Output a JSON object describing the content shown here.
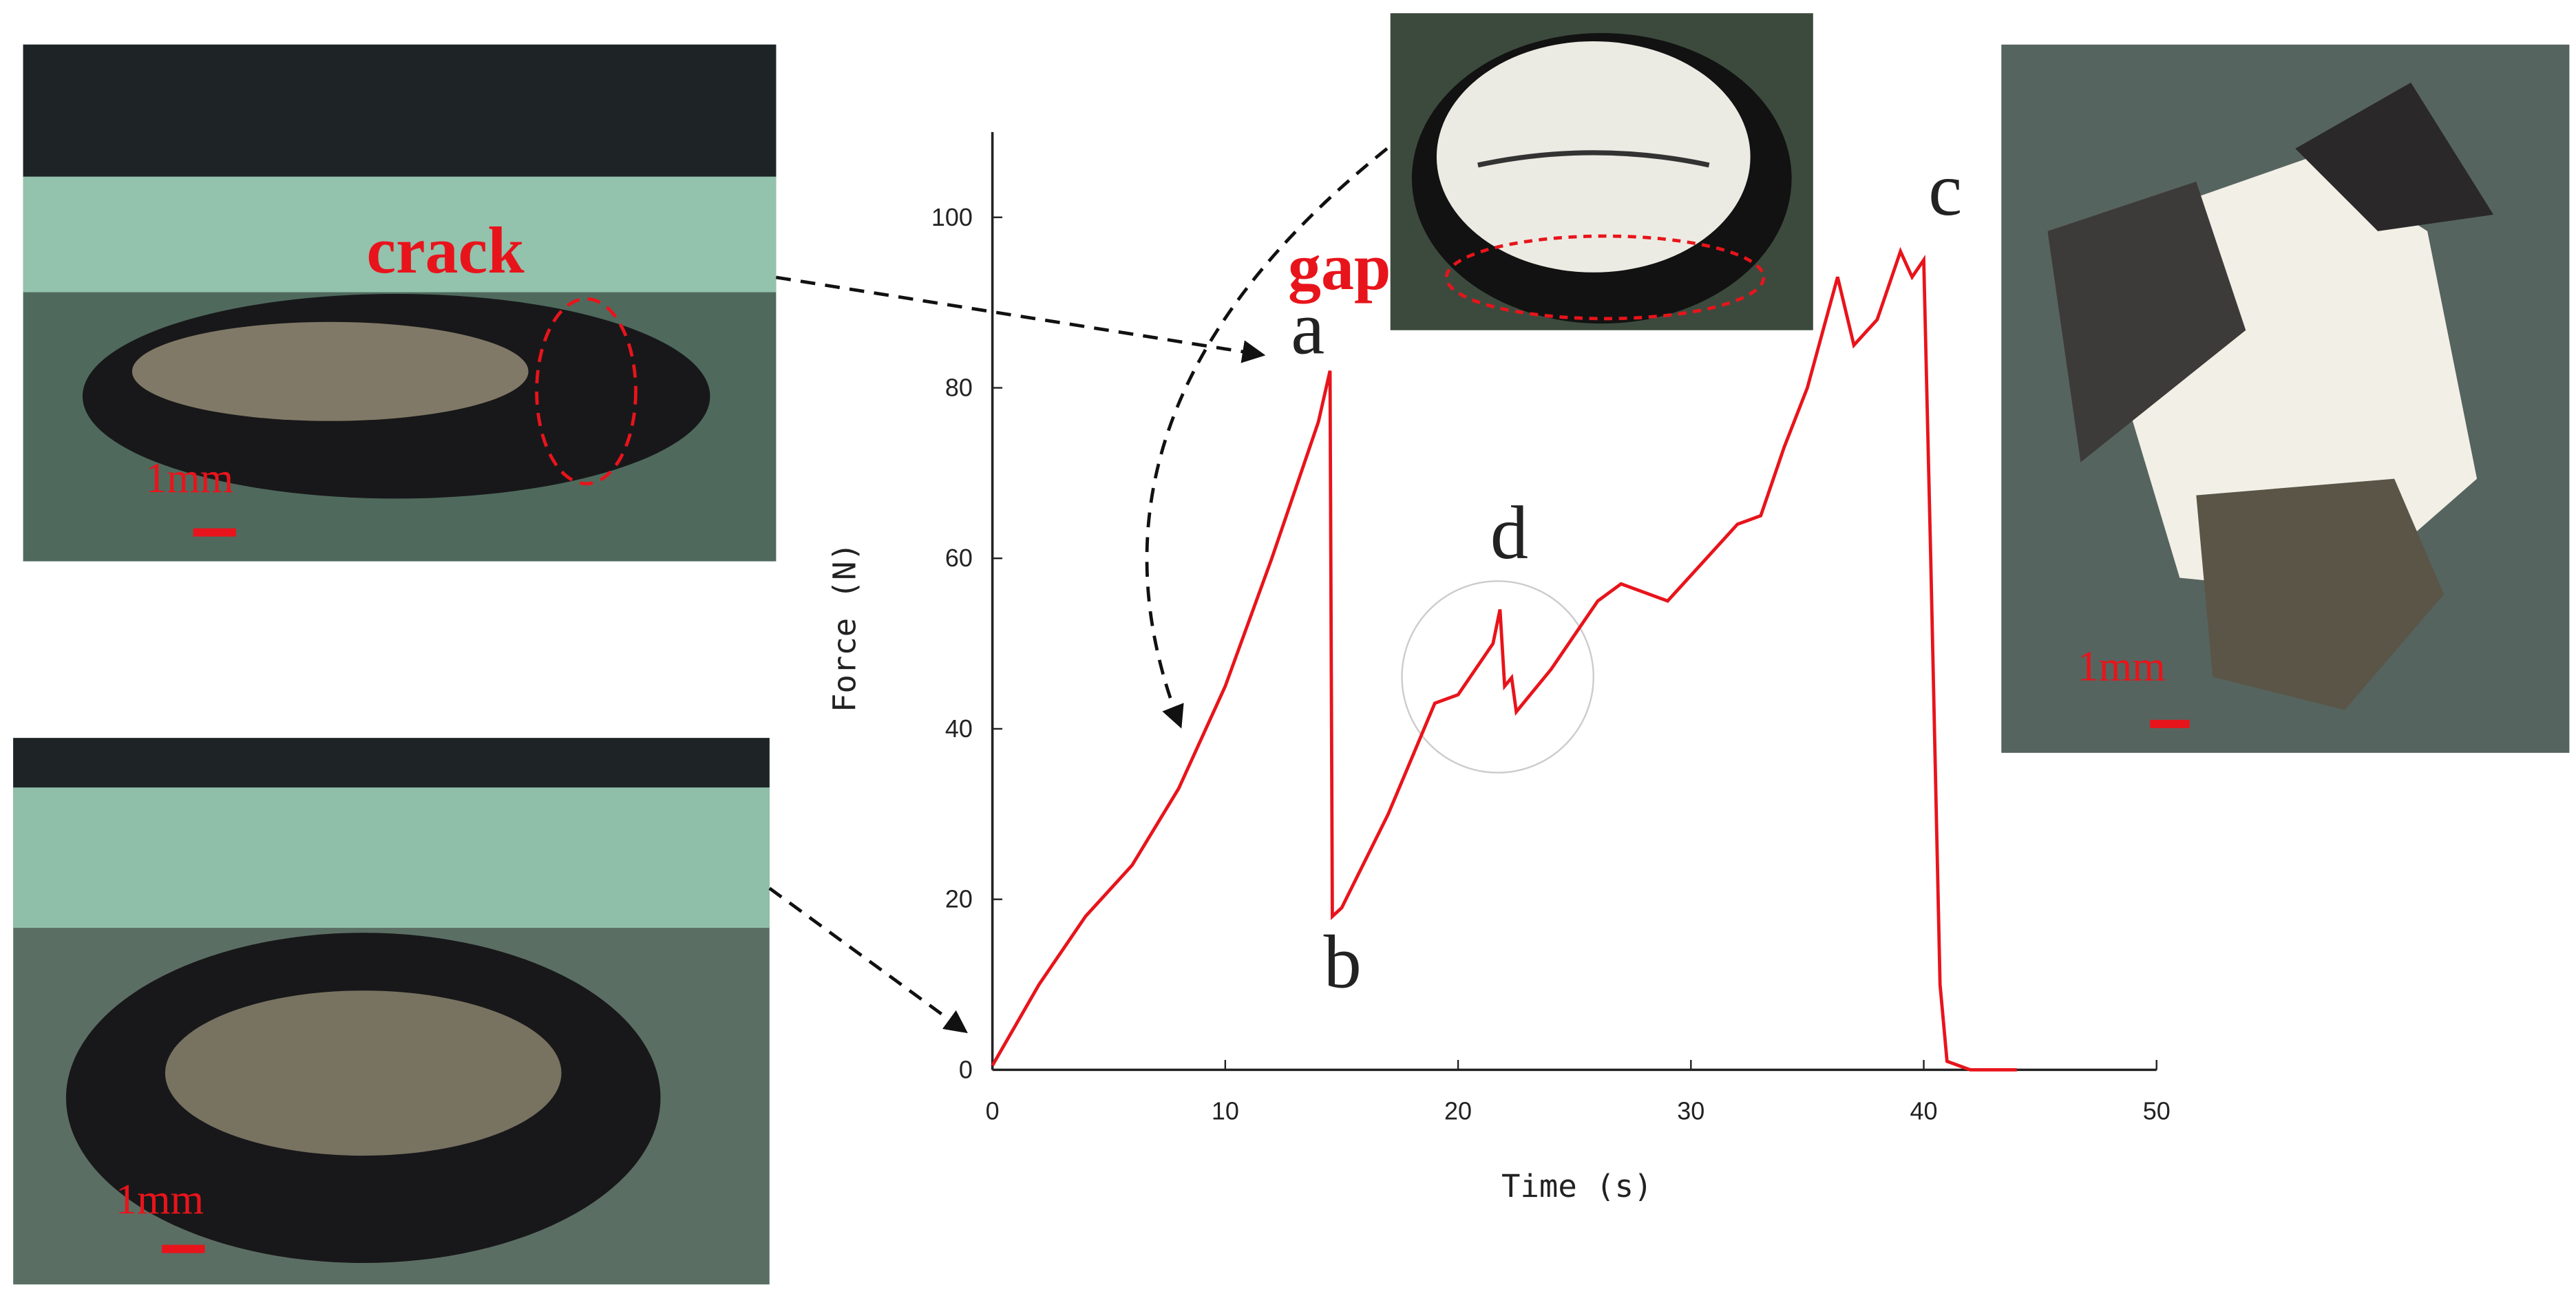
{
  "chart_data": {
    "type": "line",
    "xlabel": "Time (s)",
    "ylabel": "Force (N)",
    "x": [
      0,
      2,
      4,
      6,
      8,
      10,
      12,
      14,
      14.5,
      14.6,
      15,
      17,
      19,
      20,
      21.5,
      21.8,
      22,
      22.3,
      22.5,
      24,
      26,
      27,
      28,
      29,
      30,
      32,
      33,
      34,
      35,
      36,
      36.3,
      37,
      38,
      38.5,
      39,
      39.5,
      40,
      40.3,
      40.7,
      41,
      42,
      44
    ],
    "series": [
      {
        "name": "Force",
        "color": "#e8141b",
        "values": [
          0.5,
          10,
          18,
          24,
          33,
          45,
          60,
          76,
          82,
          18,
          19,
          30,
          43,
          44,
          50,
          54,
          45,
          46,
          42,
          47,
          55,
          57,
          56,
          55,
          58,
          64,
          65,
          73,
          80,
          90,
          93,
          85,
          88,
          92,
          96,
          93,
          95,
          60,
          10,
          1,
          0,
          0
        ]
      }
    ],
    "xlim": [
      0,
      50
    ],
    "ylim": [
      0,
      110
    ],
    "xticks": [
      0,
      10,
      20,
      30,
      40,
      50
    ],
    "yticks": [
      0,
      20,
      40,
      60,
      80,
      100
    ],
    "annotations": [
      "a",
      "b",
      "c",
      "d",
      "crack",
      "gap",
      "1mm",
      "1mm",
      "1mm"
    ]
  }
}
